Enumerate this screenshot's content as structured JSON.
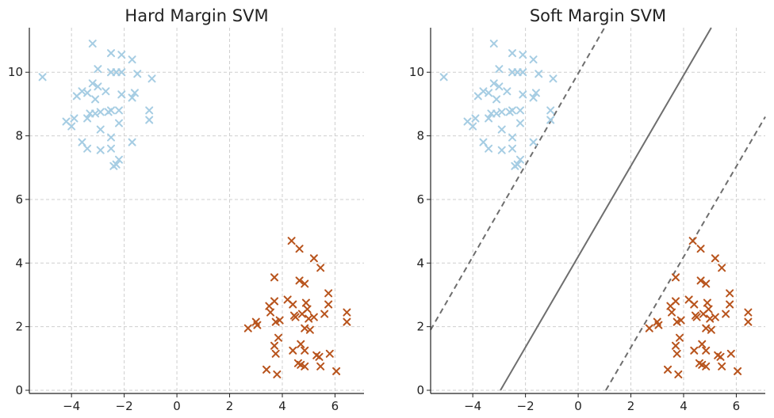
{
  "chart_data": [
    {
      "type": "scatter",
      "title": "Hard Margin SVM",
      "xlim": [
        -5.6,
        7.1
      ],
      "ylim": [
        -0.1,
        11.4
      ],
      "xticks": [
        -4,
        -2,
        0,
        2,
        4,
        6
      ],
      "xtick_labels": [
        "−4",
        "−2",
        "0",
        "2",
        "4",
        "6"
      ],
      "yticks": [
        0,
        2,
        4,
        6,
        8,
        10
      ],
      "ytick_labels": [
        "0",
        "2",
        "4",
        "6",
        "8",
        "10"
      ],
      "grid": true,
      "marker": "x",
      "series": [
        {
          "color": "#a6cde3",
          "points": [
            [
              -5.1,
              9.85
            ],
            [
              -3.2,
              10.9
            ],
            [
              -2.5,
              10.6
            ],
            [
              -2.1,
              10.55
            ],
            [
              -1.7,
              10.4
            ],
            [
              -1.5,
              9.95
            ],
            [
              -0.95,
              9.8
            ],
            [
              -2.5,
              10.0
            ],
            [
              -2.3,
              10.0
            ],
            [
              -2.1,
              10.0
            ],
            [
              -3.0,
              10.1
            ],
            [
              -3.2,
              9.65
            ],
            [
              -3.0,
              9.55
            ],
            [
              -3.6,
              9.4
            ],
            [
              -3.4,
              9.35
            ],
            [
              -3.8,
              9.25
            ],
            [
              -2.7,
              9.4
            ],
            [
              -3.1,
              9.15
            ],
            [
              -2.1,
              9.3
            ],
            [
              -1.6,
              9.35
            ],
            [
              -1.7,
              9.2
            ],
            [
              -2.5,
              8.8
            ],
            [
              -2.2,
              8.8
            ],
            [
              -3.3,
              8.7
            ],
            [
              -3.1,
              8.7
            ],
            [
              -2.9,
              8.75
            ],
            [
              -2.6,
              8.75
            ],
            [
              -3.4,
              8.55
            ],
            [
              -3.9,
              8.55
            ],
            [
              -4.2,
              8.45
            ],
            [
              -4.0,
              8.3
            ],
            [
              -2.2,
              8.4
            ],
            [
              -2.9,
              8.2
            ],
            [
              -1.05,
              8.8
            ],
            [
              -1.05,
              8.5
            ],
            [
              -2.5,
              7.95
            ],
            [
              -3.6,
              7.8
            ],
            [
              -3.4,
              7.6
            ],
            [
              -2.9,
              7.55
            ],
            [
              -2.5,
              7.6
            ],
            [
              -1.7,
              7.8
            ],
            [
              -2.2,
              7.25
            ],
            [
              -2.3,
              7.1
            ],
            [
              -2.4,
              7.05
            ]
          ]
        },
        {
          "color": "#b8541d",
          "points": [
            [
              4.35,
              4.7
            ],
            [
              4.65,
              4.45
            ],
            [
              5.2,
              4.15
            ],
            [
              5.45,
              3.85
            ],
            [
              3.7,
              3.55
            ],
            [
              4.65,
              3.45
            ],
            [
              4.85,
              3.35
            ],
            [
              5.75,
              3.05
            ],
            [
              5.75,
              2.7
            ],
            [
              3.7,
              2.8
            ],
            [
              3.5,
              2.65
            ],
            [
              4.2,
              2.85
            ],
            [
              4.4,
              2.7
            ],
            [
              4.9,
              2.75
            ],
            [
              4.95,
              2.55
            ],
            [
              5.6,
              2.4
            ],
            [
              6.45,
              2.45
            ],
            [
              3.55,
              2.45
            ],
            [
              4.45,
              2.35
            ],
            [
              4.5,
              2.3
            ],
            [
              4.75,
              2.4
            ],
            [
              5.0,
              2.25
            ],
            [
              5.2,
              2.3
            ],
            [
              3.0,
              2.15
            ],
            [
              3.05,
              2.05
            ],
            [
              2.7,
              1.95
            ],
            [
              3.75,
              2.15
            ],
            [
              3.9,
              2.2
            ],
            [
              4.85,
              1.95
            ],
            [
              5.05,
              1.9
            ],
            [
              6.45,
              2.15
            ],
            [
              3.85,
              1.65
            ],
            [
              3.7,
              1.4
            ],
            [
              4.7,
              1.45
            ],
            [
              4.4,
              1.25
            ],
            [
              4.85,
              1.25
            ],
            [
              3.75,
              1.15
            ],
            [
              5.3,
              1.1
            ],
            [
              5.4,
              1.05
            ],
            [
              5.8,
              1.15
            ],
            [
              4.6,
              0.85
            ],
            [
              4.7,
              0.8
            ],
            [
              4.85,
              0.75
            ],
            [
              5.45,
              0.75
            ],
            [
              3.4,
              0.65
            ],
            [
              3.8,
              0.5
            ],
            [
              6.05,
              0.6
            ]
          ]
        }
      ],
      "lines": []
    },
    {
      "type": "scatter",
      "title": "Soft Margin SVM",
      "xlim": [
        -5.6,
        7.1
      ],
      "ylim": [
        -0.1,
        11.4
      ],
      "xticks": [
        -4,
        -2,
        0,
        2,
        4,
        6
      ],
      "xtick_labels": [
        "−4",
        "−2",
        "0",
        "2",
        "4",
        "6"
      ],
      "yticks": [
        0,
        2,
        4,
        6,
        8,
        10
      ],
      "ytick_labels": [
        "0",
        "2",
        "4",
        "6",
        "8",
        "10"
      ],
      "grid": true,
      "marker": "x",
      "series": [
        {
          "color": "#a6cde3",
          "points": [
            [
              -5.1,
              9.85
            ],
            [
              -3.2,
              10.9
            ],
            [
              -2.5,
              10.6
            ],
            [
              -2.1,
              10.55
            ],
            [
              -1.7,
              10.4
            ],
            [
              -1.5,
              9.95
            ],
            [
              -0.95,
              9.8
            ],
            [
              -2.5,
              10.0
            ],
            [
              -2.3,
              10.0
            ],
            [
              -2.1,
              10.0
            ],
            [
              -3.0,
              10.1
            ],
            [
              -3.2,
              9.65
            ],
            [
              -3.0,
              9.55
            ],
            [
              -3.6,
              9.4
            ],
            [
              -3.4,
              9.35
            ],
            [
              -3.8,
              9.25
            ],
            [
              -2.7,
              9.4
            ],
            [
              -3.1,
              9.15
            ],
            [
              -2.1,
              9.3
            ],
            [
              -1.6,
              9.35
            ],
            [
              -1.7,
              9.2
            ],
            [
              -2.5,
              8.8
            ],
            [
              -2.2,
              8.8
            ],
            [
              -3.3,
              8.7
            ],
            [
              -3.1,
              8.7
            ],
            [
              -2.9,
              8.75
            ],
            [
              -2.6,
              8.75
            ],
            [
              -3.4,
              8.55
            ],
            [
              -3.9,
              8.55
            ],
            [
              -4.2,
              8.45
            ],
            [
              -4.0,
              8.3
            ],
            [
              -2.2,
              8.4
            ],
            [
              -2.9,
              8.2
            ],
            [
              -1.05,
              8.8
            ],
            [
              -1.05,
              8.5
            ],
            [
              -2.5,
              7.95
            ],
            [
              -3.6,
              7.8
            ],
            [
              -3.4,
              7.6
            ],
            [
              -2.9,
              7.55
            ],
            [
              -2.5,
              7.6
            ],
            [
              -1.7,
              7.8
            ],
            [
              -2.2,
              7.25
            ],
            [
              -2.3,
              7.1
            ],
            [
              -2.4,
              7.05
            ]
          ]
        },
        {
          "color": "#b8541d",
          "points": [
            [
              4.35,
              4.7
            ],
            [
              4.65,
              4.45
            ],
            [
              5.2,
              4.15
            ],
            [
              5.45,
              3.85
            ],
            [
              3.7,
              3.55
            ],
            [
              4.65,
              3.45
            ],
            [
              4.85,
              3.35
            ],
            [
              5.75,
              3.05
            ],
            [
              5.75,
              2.7
            ],
            [
              3.7,
              2.8
            ],
            [
              3.5,
              2.65
            ],
            [
              4.2,
              2.85
            ],
            [
              4.4,
              2.7
            ],
            [
              4.9,
              2.75
            ],
            [
              4.95,
              2.55
            ],
            [
              5.6,
              2.4
            ],
            [
              6.45,
              2.45
            ],
            [
              3.55,
              2.45
            ],
            [
              4.45,
              2.35
            ],
            [
              4.5,
              2.3
            ],
            [
              4.75,
              2.4
            ],
            [
              5.0,
              2.25
            ],
            [
              5.2,
              2.3
            ],
            [
              3.0,
              2.15
            ],
            [
              3.05,
              2.05
            ],
            [
              2.7,
              1.95
            ],
            [
              3.75,
              2.15
            ],
            [
              3.9,
              2.2
            ],
            [
              4.85,
              1.95
            ],
            [
              5.05,
              1.9
            ],
            [
              6.45,
              2.15
            ],
            [
              3.85,
              1.65
            ],
            [
              3.7,
              1.4
            ],
            [
              4.7,
              1.45
            ],
            [
              4.4,
              1.25
            ],
            [
              4.85,
              1.25
            ],
            [
              3.75,
              1.15
            ],
            [
              5.3,
              1.1
            ],
            [
              5.4,
              1.05
            ],
            [
              5.8,
              1.15
            ],
            [
              4.6,
              0.85
            ],
            [
              4.7,
              0.8
            ],
            [
              4.85,
              0.75
            ],
            [
              5.45,
              0.75
            ],
            [
              3.4,
              0.65
            ],
            [
              3.8,
              0.5
            ],
            [
              6.05,
              0.6
            ]
          ]
        }
      ],
      "lines": [
        {
          "kind": "decision-boundary",
          "style": "solid",
          "color": "#6e6e6e",
          "from": [
            -2.95,
            0
          ],
          "to": [
            5.05,
            11.4
          ]
        },
        {
          "kind": "margin-upper",
          "style": "dashed",
          "color": "#6e6e6e",
          "from": [
            -5.6,
            1.9
          ],
          "to": [
            1.0,
            11.4
          ]
        },
        {
          "kind": "margin-lower",
          "style": "dashed",
          "color": "#6e6e6e",
          "from": [
            1.05,
            0
          ],
          "to": [
            7.1,
            8.6
          ]
        }
      ]
    }
  ]
}
